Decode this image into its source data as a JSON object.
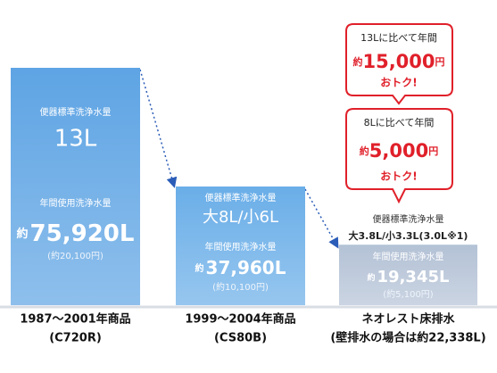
{
  "chart_data": {
    "type": "bar",
    "categories": [
      "1987～2001年商品",
      "1999～2004年商品",
      "ネオレスト床排水"
    ],
    "sublabels": [
      "(C720R)",
      "(CS80B)",
      "(壁排水の場合は約22,338L)"
    ],
    "values": [
      75920,
      37960,
      19345
    ],
    "value_labels": [
      "75,920L",
      "37,960L",
      "19,345L"
    ],
    "approx_prefix": "約",
    "annual_label": "年間使用洗浄水量",
    "flush_label": "便器標準洗浄水量",
    "flush_volumes": [
      "13L",
      "大8L/小6L",
      "大3.8L/小3.3L(3.0L※1)"
    ],
    "yen_labels": [
      "(約20,100円)",
      "(約10,100円)",
      "(約5,100円)"
    ],
    "colors": [
      "#5ea4e4",
      "#6aaee8",
      "#b4c2d6"
    ],
    "callouts": [
      {
        "line1": "13Lに比べて年間",
        "amount": "15,000",
        "unit": "円",
        "line2": "おトク!"
      },
      {
        "line1": "8Lに比べて年間",
        "amount": "5,000",
        "unit": "円",
        "line2": "おトク!"
      }
    ],
    "callout_color": "#e0202a"
  }
}
